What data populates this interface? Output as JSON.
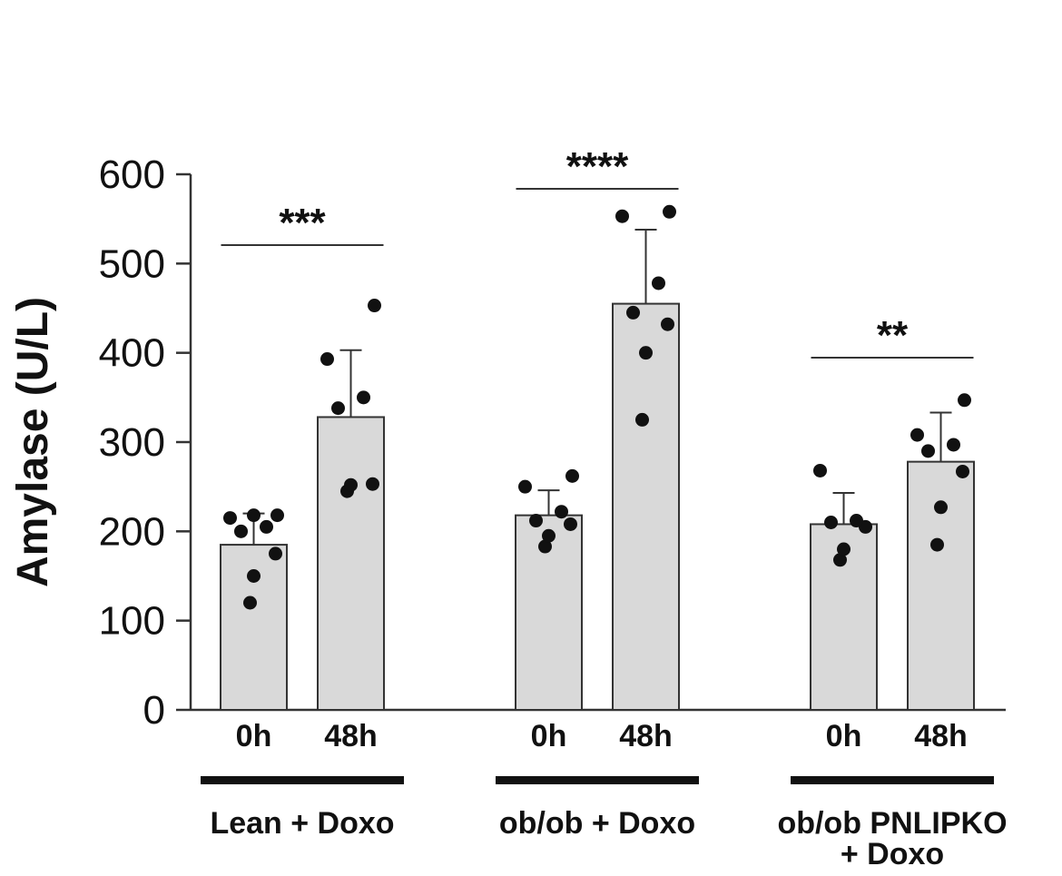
{
  "chart_data": {
    "type": "bar",
    "ylabel": "Amylase (U/L)",
    "ylim": [
      0,
      600
    ],
    "yticks": [
      0,
      100,
      200,
      300,
      400,
      500,
      600
    ],
    "grid": false,
    "bar_color": "#d9d9d9",
    "point_color": "#111111",
    "groups": [
      {
        "label_lines": [
          "Lean + Doxo"
        ],
        "significance": "***",
        "bars": [
          {
            "label": "0h",
            "mean": 185,
            "sd": 35,
            "points": [
              120,
              150,
              175,
              200,
              205,
              215,
              218,
              218
            ]
          },
          {
            "label": "48h",
            "mean": 328,
            "sd": 75,
            "points": [
              245,
              252,
              253,
              338,
              350,
              393,
              453
            ]
          }
        ]
      },
      {
        "label_lines": [
          "ob/ob + Doxo"
        ],
        "significance": "****",
        "bars": [
          {
            "label": "0h",
            "mean": 218,
            "sd": 28,
            "points": [
              183,
              195,
              208,
              212,
              222,
              250,
              262
            ]
          },
          {
            "label": "48h",
            "mean": 455,
            "sd": 83,
            "points": [
              325,
              400,
              432,
              445,
              478,
              553,
              558
            ]
          }
        ]
      },
      {
        "label_lines": [
          "ob/ob PNLIPKO",
          "+ Doxo"
        ],
        "significance": "**",
        "bars": [
          {
            "label": "0h",
            "mean": 208,
            "sd": 35,
            "points": [
              168,
              180,
              205,
              210,
              212,
              268
            ]
          },
          {
            "label": "48h",
            "mean": 278,
            "sd": 55,
            "points": [
              185,
              227,
              267,
              290,
              297,
              308,
              347
            ]
          }
        ]
      }
    ]
  }
}
